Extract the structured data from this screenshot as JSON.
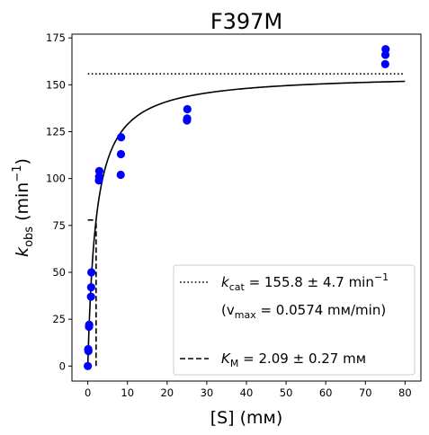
{
  "chart_data": {
    "type": "scatter",
    "title": "F397M",
    "xlabel": "[S] (mм)",
    "ylabel": {
      "main": "k",
      "sub": "obs",
      "unit_open": " (min",
      "sup": "−1",
      "unit_close": ")"
    },
    "xlim": [
      -4,
      84
    ],
    "ylim": [
      -8,
      177
    ],
    "xticks": [
      0,
      10,
      20,
      30,
      40,
      50,
      60,
      70,
      80
    ],
    "yticks": [
      0,
      25,
      50,
      75,
      100,
      125,
      150,
      175
    ],
    "grid": false,
    "legend_placement": "lower-right",
    "colors": {
      "points": "#0000ff",
      "lines": "#000000"
    },
    "points": [
      {
        "x": 0,
        "y": 0
      },
      {
        "x": 0.1,
        "y": 9
      },
      {
        "x": 0.15,
        "y": 8
      },
      {
        "x": 0.3,
        "y": 21
      },
      {
        "x": 0.35,
        "y": 22
      },
      {
        "x": 0.8,
        "y": 37
      },
      {
        "x": 0.85,
        "y": 42
      },
      {
        "x": 0.9,
        "y": 50
      },
      {
        "x": 2.8,
        "y": 99
      },
      {
        "x": 2.85,
        "y": 101
      },
      {
        "x": 2.9,
        "y": 104
      },
      {
        "x": 8.3,
        "y": 102
      },
      {
        "x": 8.35,
        "y": 113
      },
      {
        "x": 8.4,
        "y": 122
      },
      {
        "x": 25,
        "y": 131
      },
      {
        "x": 25.05,
        "y": 132
      },
      {
        "x": 25.1,
        "y": 137
      },
      {
        "x": 75,
        "y": 161
      },
      {
        "x": 75.05,
        "y": 166
      },
      {
        "x": 75.1,
        "y": 169
      }
    ],
    "fit": {
      "model": "michaelis-menten",
      "kcat": 155.8,
      "KM": 2.09,
      "x_range": [
        0,
        80
      ]
    },
    "kcat_line": {
      "y": 155.8,
      "x_range": [
        0,
        80
      ],
      "style": "dotted"
    },
    "km_line": {
      "x": 2.09,
      "y": 77.9,
      "style": "dashed"
    },
    "legend": {
      "kcat_prefix": "k",
      "kcat_sub": "cat",
      "kcat_value": " = 155.8 ± 4.7 min",
      "kcat_sup": "−1",
      "vmax_open": "(v",
      "vmax_sub": "max",
      "vmax_value": " = 0.0574 mм/min)",
      "km_prefix": "K",
      "km_sub": "M",
      "km_value": " = 2.09 ± 0.27 mм"
    }
  }
}
